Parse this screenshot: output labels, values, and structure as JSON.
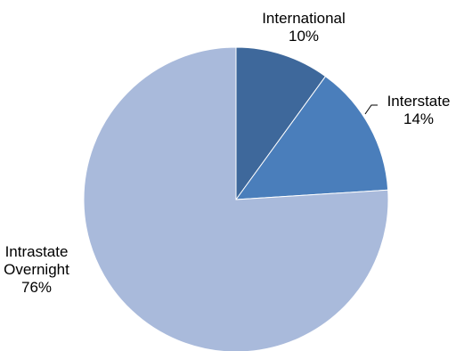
{
  "chart_data": {
    "type": "pie",
    "title": "",
    "start_angle_deg": 0,
    "direction": "clockwise",
    "legend": "none",
    "slices": [
      {
        "label": "International",
        "label_lines": [
          "International"
        ],
        "value": 10,
        "value_label": "10%",
        "color": "#3e689b"
      },
      {
        "label": "Interstate",
        "label_lines": [
          "Interstate"
        ],
        "value": 14,
        "value_label": "14%",
        "color": "#4a7ebb"
      },
      {
        "label": "Intrastate Overnight",
        "label_lines": [
          "Intrastate",
          "Overnight"
        ],
        "value": 76,
        "value_label": "76%",
        "color": "#a9badb"
      }
    ]
  }
}
